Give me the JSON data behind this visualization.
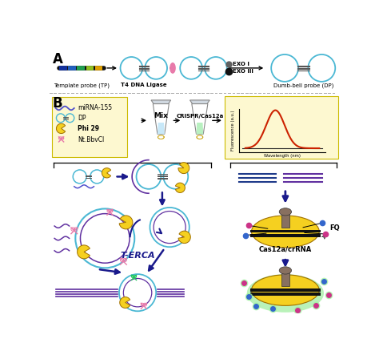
{
  "bg_color": "#ffffff",
  "section_A_label": "A",
  "section_B_label": "B",
  "label_tp": "Template probe (TP)",
  "label_t4": "T4 DNA Ligase",
  "label_dp": "Dumb-bell probe (DP)",
  "label_exo1": "EXO I",
  "label_exo3": "EXO III",
  "label_mirna": "miRNA-155",
  "label_dp2": "DP",
  "label_phi29": "Phi 29",
  "label_nt": "Nt.BbvCI",
  "label_mix": "Mix",
  "label_crispr": "CRISPR/Cas12a",
  "label_terca": "T-ERCA",
  "label_cas12a": "Cas12a/crRNA",
  "label_fq": "FQ",
  "label_fluorescence": "Fluorescence (a.u.)",
  "label_wavelength": "Wavelength (nm)",
  "circle_color": "#4bb8d4",
  "arrow_color": "#1a1a8c",
  "pink_color": "#e87aaa",
  "yellow_color": "#f5d020",
  "purple_color": "#6030a0",
  "green_color": "#22c55e",
  "gray_color": "#707070",
  "legend_bg": "#fdf8d0",
  "dotted_line_color": "#888888",
  "red_curve_color": "#cc2200",
  "dark_blue": "#1e3a8a"
}
